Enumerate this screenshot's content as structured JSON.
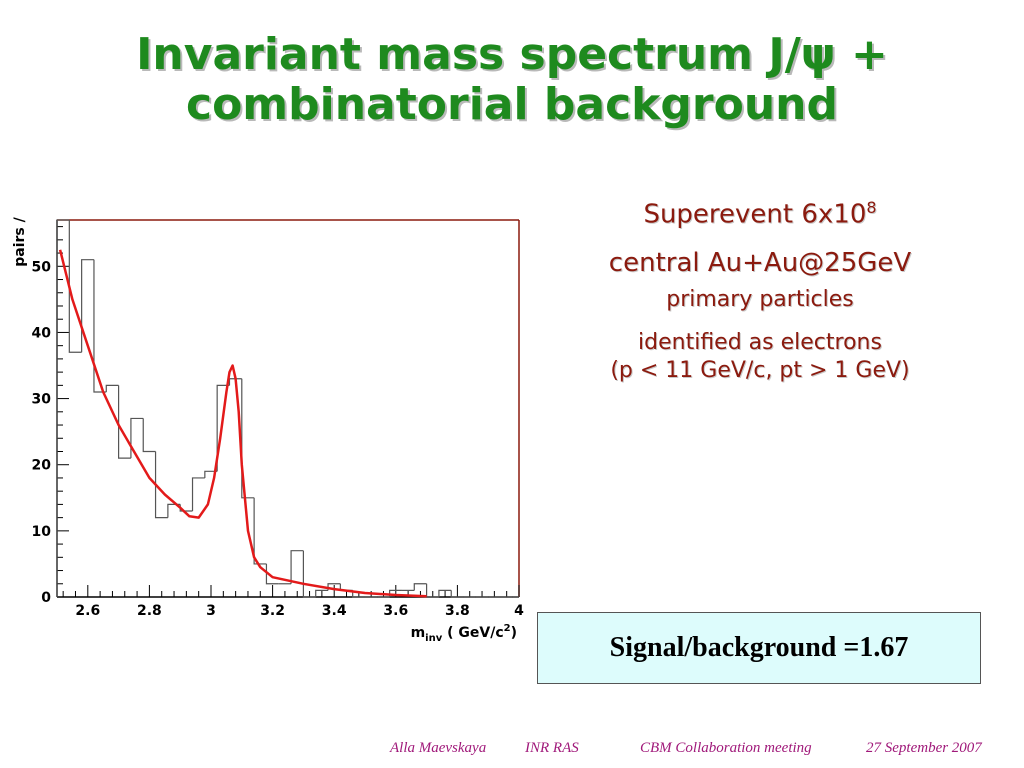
{
  "slide": {
    "title_line1": "Invariant mass spectrum J/ψ +",
    "title_line2": "combinatorial background",
    "info": {
      "line1_base": "Superevent 6x10",
      "line1_exp": "8",
      "line2": "central Au+Au@25GeV",
      "line3": "primary particles",
      "line4": "identified as electrons",
      "line5": "(p < 11 GeV/c, pt > 1 GeV)"
    },
    "signal_background": "Signal/background =1.67",
    "footer": {
      "author": "Alla Maevskaya",
      "institute": "INR RAS",
      "meeting": "CBM Collaboration meeting",
      "date": "27 September 2007"
    },
    "colors": {
      "title": "#1e8a1e",
      "info_text": "#8b1a0e",
      "footer_text": "#a0197a",
      "signal_box_bg": "#ddfcfc",
      "fit_curve": "#e31a1a",
      "histogram": "#555555",
      "frame_right_top": "#8b1a0e"
    }
  },
  "chart_data": {
    "type": "histogram",
    "title": "",
    "xlabel_main": "m",
    "xlabel_sub": "inv",
    "xlabel_rest": " ( GeV/c",
    "xlabel_sup": "2",
    "xlabel_close": ")",
    "ylabel": "pairs /",
    "xlim": [
      2.5,
      4.0
    ],
    "ylim": [
      0,
      57
    ],
    "xticks": [
      2.6,
      2.8,
      3.0,
      3.2,
      3.4,
      3.6,
      3.8,
      4.0
    ],
    "xtick_labels": [
      "2.6",
      "2.8",
      "3",
      "3.2",
      "3.4",
      "3.6",
      "3.8",
      "4"
    ],
    "yticks": [
      0,
      10,
      20,
      30,
      40,
      50
    ],
    "ytick_labels": [
      "0",
      "10",
      "20",
      "30",
      "40",
      "50"
    ],
    "bin_width": 0.04,
    "bin_edges_start": 2.5,
    "histogram_values": [
      57,
      37,
      51,
      31,
      32,
      21,
      27,
      22,
      12,
      14,
      13,
      18,
      19,
      32,
      33,
      15,
      5,
      2,
      2,
      7,
      0,
      1,
      2,
      1,
      0,
      0,
      0,
      1,
      1,
      2,
      0,
      1,
      0,
      0,
      0,
      0,
      0,
      0
    ],
    "fit_curve": {
      "x": [
        2.51,
        2.55,
        2.6,
        2.65,
        2.7,
        2.75,
        2.8,
        2.85,
        2.9,
        2.93,
        2.96,
        2.99,
        3.01,
        3.03,
        3.05,
        3.06,
        3.07,
        3.08,
        3.09,
        3.1,
        3.12,
        3.14,
        3.16,
        3.2,
        3.3,
        3.4,
        3.5,
        3.6,
        3.7
      ],
      "y": [
        52.5,
        45,
        38,
        31,
        26,
        22,
        18,
        15.5,
        13.5,
        12.2,
        12,
        14,
        18,
        24,
        31,
        34,
        35,
        33,
        28,
        20,
        10,
        6,
        4.5,
        3,
        2,
        1.2,
        0.6,
        0.3,
        0.1
      ]
    },
    "grid": false
  }
}
